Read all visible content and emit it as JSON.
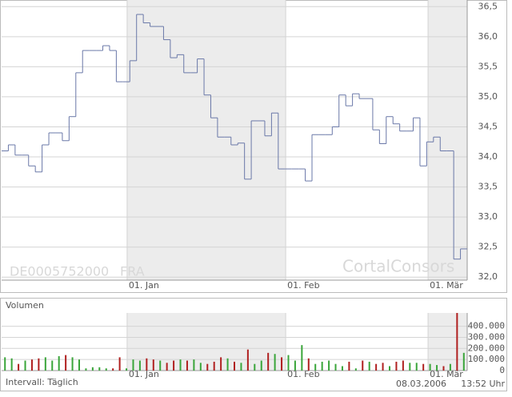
{
  "chart_data": [
    {
      "type": "step",
      "x": [
        0,
        1,
        2,
        3,
        4,
        5,
        6,
        7,
        8,
        9,
        10,
        11,
        12,
        13,
        14,
        15,
        16,
        17,
        18,
        19,
        20,
        21,
        22,
        23,
        24,
        25,
        26,
        27,
        28,
        29,
        30,
        31,
        32,
        33,
        34,
        35,
        36,
        37,
        38,
        39,
        40,
        41,
        42,
        43,
        44,
        45,
        46,
        47,
        48,
        49,
        50,
        51,
        52,
        53,
        54,
        55,
        56,
        57,
        58,
        59,
        60,
        61,
        62,
        63,
        64,
        65,
        66,
        67,
        68
      ],
      "values": [
        34.1,
        34.2,
        34.03,
        34.03,
        33.85,
        33.75,
        34.2,
        34.4,
        34.4,
        34.27,
        34.67,
        35.4,
        35.77,
        35.77,
        35.77,
        35.85,
        35.77,
        35.25,
        35.25,
        35.6,
        36.37,
        36.23,
        36.17,
        36.17,
        35.95,
        35.65,
        35.7,
        35.4,
        35.4,
        35.63,
        35.03,
        34.65,
        34.33,
        34.33,
        34.2,
        34.23,
        33.63,
        34.6,
        34.6,
        34.35,
        34.73,
        33.8,
        33.8,
        33.8,
        33.8,
        33.6,
        34.37,
        34.37,
        34.37,
        34.5,
        35.03,
        34.85,
        35.05,
        34.97,
        34.97,
        34.45,
        34.22,
        34.67,
        34.55,
        34.43,
        34.43,
        34.65,
        33.85,
        34.25,
        34.33,
        34.1,
        34.1,
        32.3,
        32.47
      ],
      "color": "#6a78a8",
      "xlim": [
        0,
        69
      ],
      "xticks": [
        {
          "value": 18.6,
          "label": "01. Jan"
        },
        {
          "value": 42.1,
          "label": "01. Feb"
        },
        {
          "value": 63.2,
          "label": "01. Mär"
        }
      ],
      "ylim": [
        31.95,
        36.61
      ],
      "yticks": [
        {
          "value": 32.0,
          "label": "32,0"
        },
        {
          "value": 32.5,
          "label": "32,5"
        },
        {
          "value": 33.0,
          "label": "33,0"
        },
        {
          "value": 33.5,
          "label": "33,5"
        },
        {
          "value": 34.0,
          "label": "34,0"
        },
        {
          "value": 34.5,
          "label": "34,5"
        },
        {
          "value": 35.0,
          "label": "35,0"
        },
        {
          "value": 35.5,
          "label": "35,5"
        },
        {
          "value": 36.0,
          "label": "36,0"
        },
        {
          "value": 36.5,
          "label": "36,5"
        }
      ],
      "grid": true,
      "watermark": [
        "DE0005752000",
        "FRA",
        "CortalConsors"
      ]
    },
    {
      "type": "bar",
      "title": "Volumen",
      "values": [
        120000,
        110000,
        60000,
        90000,
        100000,
        110000,
        120000,
        90000,
        130000,
        140000,
        120000,
        100000,
        20000,
        30000,
        30000,
        20000,
        20000,
        120000,
        20000,
        100000,
        90000,
        110000,
        100000,
        90000,
        70000,
        90000,
        100000,
        90000,
        100000,
        70000,
        60000,
        80000,
        120000,
        110000,
        80000,
        70000,
        190000,
        60000,
        90000,
        160000,
        150000,
        120000,
        140000,
        90000,
        230000,
        110000,
        60000,
        80000,
        90000,
        60000,
        40000,
        80000,
        20000,
        90000,
        80000,
        60000,
        70000,
        40000,
        80000,
        90000,
        70000,
        70000,
        60000,
        60000,
        50000,
        40000,
        60000,
        520000,
        160000
      ],
      "up_color": "#3aa53a",
      "down_color": "#b02020",
      "xlim": [
        0,
        69
      ],
      "xticks": [
        {
          "value": 18.6,
          "label": "01. Jan"
        },
        {
          "value": 42.1,
          "label": "01. Feb"
        },
        {
          "value": 63.2,
          "label": "01. Mär"
        }
      ],
      "ylim": [
        0,
        520000
      ],
      "yticks": [
        0,
        {
          "value": 100000,
          "label": "100.000"
        },
        {
          "value": 200000,
          "label": "200.000"
        },
        {
          "value": 300000,
          "label": "300.000"
        },
        {
          "value": 400000,
          "label": "400.000"
        }
      ],
      "grid": true,
      "interval": "Intervall: Täglich",
      "date": "08.03.2006",
      "time": "13:52 Uhr"
    }
  ]
}
